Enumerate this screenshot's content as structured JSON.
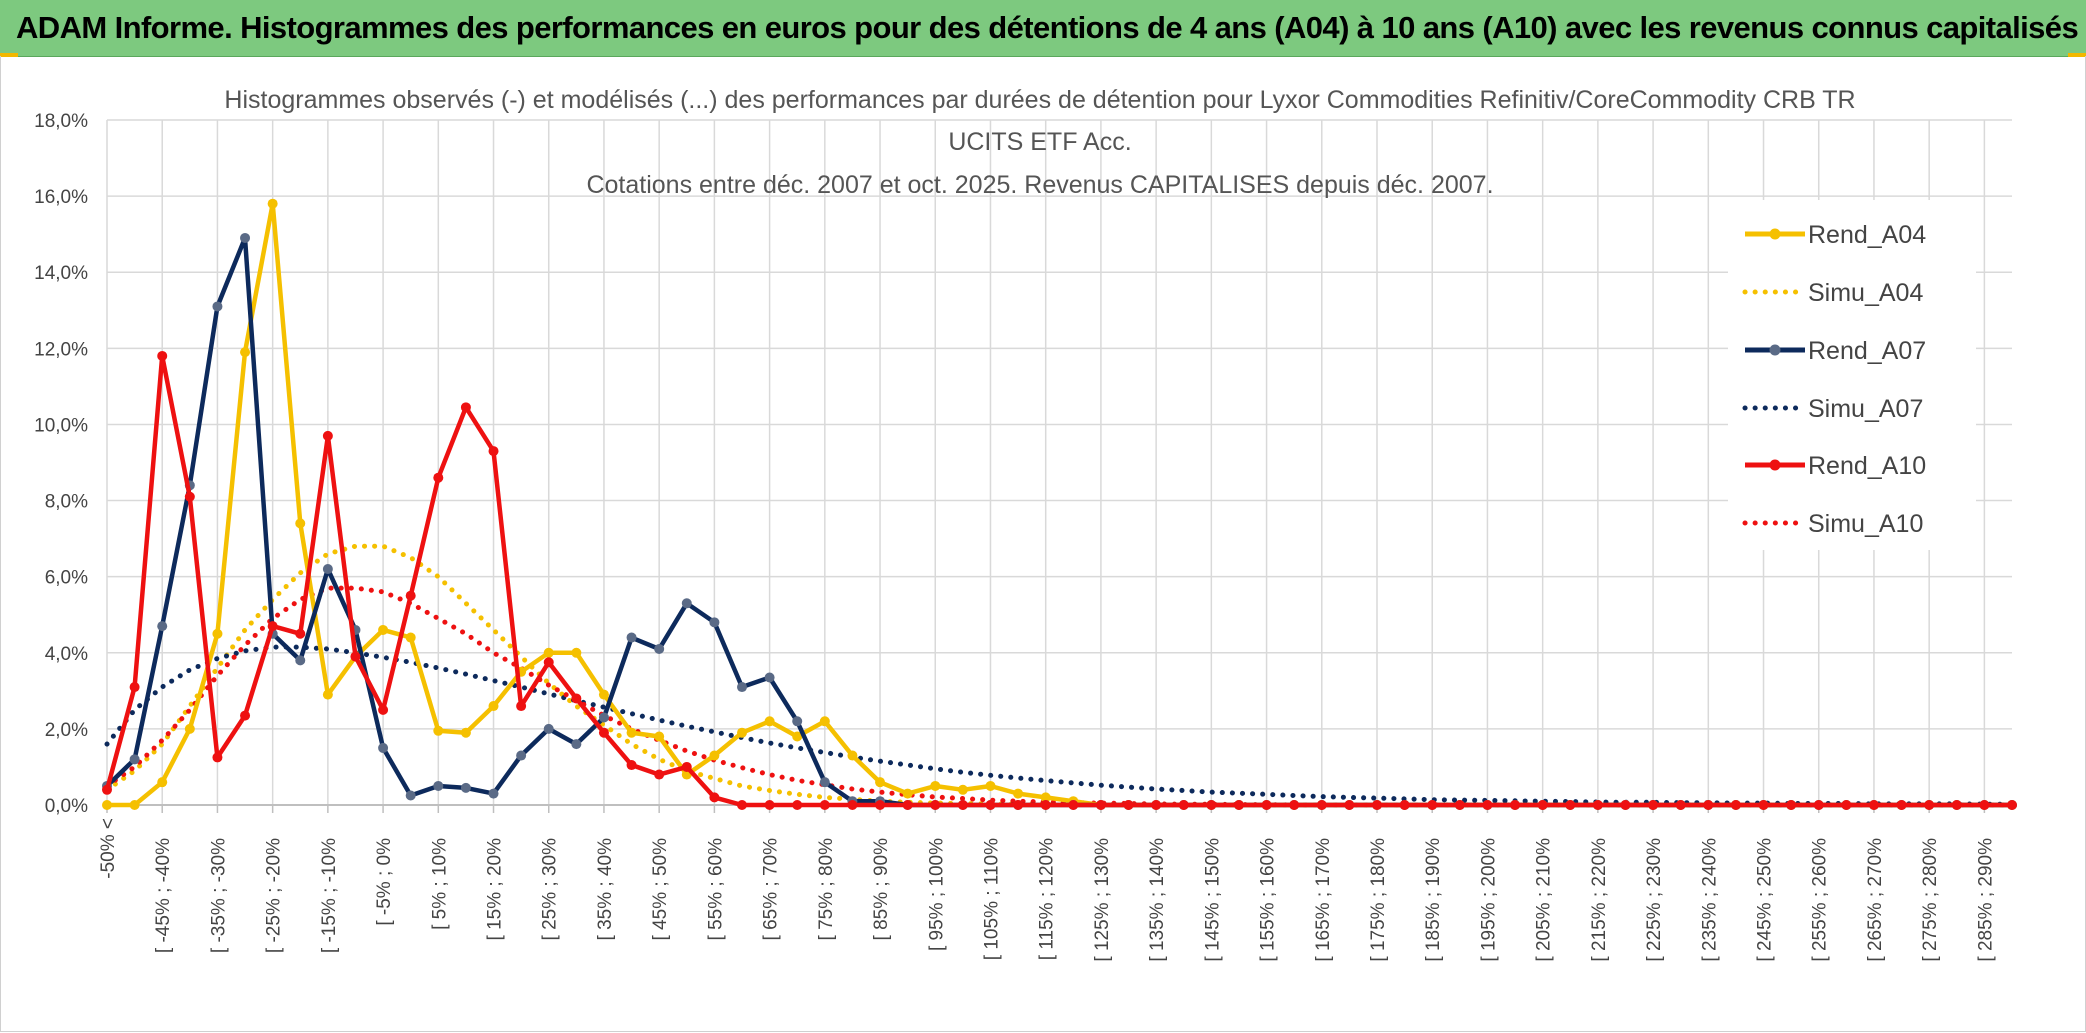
{
  "header": {
    "title": "ADAM Informe. Histogrammes des performances en euros pour des détentions de 4 ans (A04) à 10 ans (A10) avec les revenus connus capitalisés"
  },
  "colors": {
    "banner": "#7dc97f",
    "A04": "#f5c000",
    "A07": "#0d2a5c",
    "A07_marker": "#5a6a86",
    "A10": "#ee1111",
    "grid": "#d9d9d9"
  },
  "chart_data": {
    "type": "line",
    "title_lines": [
      "Histogrammes observés (-) et modélisés (...) des performances par durées de détention pour Lyxor Commodities Refinitiv/CoreCommodity CRB TR",
      "UCITS ETF Acc.",
      "Cotations entre déc. 2007 et oct. 2025. Revenus CAPITALISES depuis déc. 2007."
    ],
    "ylim": [
      0,
      18
    ],
    "yticks": [
      "0,0%",
      "2,0%",
      "4,0%",
      "6,0%",
      "8,0%",
      "10,0%",
      "12,0%",
      "14,0%",
      "16,0%",
      "18,0%"
    ],
    "x_tick_labels": [
      "-50% <",
      "[ -45% ; -40%",
      "[ -35% ; -30%",
      "[ -25% ; -20%",
      "[ -15% ; -10%",
      "[ -5% ; 0%",
      "[ 5% ; 10%",
      "[ 15% ; 20%",
      "[ 25% ; 30%",
      "[ 35% ; 40%",
      "[ 45% ; 50%",
      "[ 55% ; 60%",
      "[ 65% ; 70%",
      "[ 75% ; 80%",
      "[ 85% ; 90%",
      "[ 95% ; 100%",
      "[ 105% ; 110%",
      "[ 115% ; 120%",
      "[ 125% ; 130%",
      "[ 135% ; 140%",
      "[ 145% ; 150%",
      "[ 155% ; 160%",
      "[ 165% ; 170%",
      "[ 175% ; 180%",
      "[ 185% ; 190%",
      "[ 195% ; 200%",
      "[ 205% ; 210%",
      "[ 215% ; 220%",
      "[ 225% ; 230%",
      "[ 235% ; 240%",
      "[ 245% ; 250%",
      "[ 255% ; 260%",
      "[ 265% ; 270%",
      "[ 275% ; 280%",
      "[ 285% ; 290%"
    ],
    "x_tick_step": 2,
    "n_categories": 70,
    "legend_position": "top-right",
    "series": [
      {
        "name": "Rend_A04",
        "style": "solid",
        "color": "#f5c000",
        "values": [
          0,
          0,
          0.6,
          2.0,
          4.5,
          11.9,
          15.8,
          7.4,
          2.9,
          3.9,
          4.6,
          4.4,
          1.95,
          1.9,
          2.6,
          3.5,
          4.0,
          4.0,
          2.9,
          1.9,
          1.8,
          0.8,
          1.3,
          1.9,
          2.2,
          1.8,
          2.2,
          1.3,
          0.6,
          0.3,
          0.5,
          0.4,
          0.5,
          0.3,
          0.2,
          0.1,
          0,
          0,
          0,
          0,
          0,
          0,
          0,
          0,
          0,
          0,
          0,
          0,
          0,
          0,
          0,
          0,
          0,
          0,
          0,
          0,
          0,
          0,
          0,
          0,
          0,
          0,
          0,
          0,
          0,
          0,
          0,
          0,
          0,
          0
        ]
      },
      {
        "name": "Simu_A04",
        "style": "dotted",
        "color": "#f5c000",
        "values": [
          0.4,
          0.9,
          1.6,
          2.6,
          3.6,
          4.6,
          5.4,
          6.1,
          6.6,
          6.8,
          6.8,
          6.5,
          6.0,
          5.3,
          4.6,
          3.9,
          3.2,
          2.6,
          2.1,
          1.6,
          1.2,
          0.9,
          0.7,
          0.5,
          0.38,
          0.28,
          0.2,
          0.15,
          0.1,
          0.07,
          0.05,
          0.04,
          0.03,
          0.02,
          0.01,
          0.01,
          0.01,
          0,
          0,
          0,
          0,
          0,
          0,
          0,
          0,
          0,
          0,
          0,
          0,
          0,
          0,
          0,
          0,
          0,
          0,
          0,
          0,
          0,
          0,
          0,
          0,
          0,
          0,
          0,
          0,
          0,
          0,
          0,
          0,
          0
        ]
      },
      {
        "name": "Rend_A07",
        "style": "solid",
        "color": "#0d2a5c",
        "values": [
          0.5,
          1.2,
          4.7,
          8.4,
          13.1,
          14.9,
          4.5,
          3.8,
          6.2,
          4.6,
          1.5,
          0.25,
          0.5,
          0.45,
          0.3,
          1.3,
          2.0,
          1.6,
          2.3,
          4.4,
          4.1,
          5.3,
          4.8,
          3.1,
          3.35,
          2.2,
          0.6,
          0.1,
          0.1,
          0,
          0,
          0,
          0,
          0,
          0,
          0,
          0,
          0,
          0,
          0,
          0,
          0,
          0,
          0,
          0,
          0,
          0,
          0,
          0,
          0,
          0,
          0,
          0,
          0,
          0,
          0,
          0,
          0,
          0,
          0,
          0,
          0,
          0,
          0,
          0,
          0,
          0,
          0,
          0,
          0
        ]
      },
      {
        "name": "Simu_A07",
        "style": "dotted",
        "color": "#0d2a5c",
        "values": [
          1.6,
          2.5,
          3.1,
          3.55,
          3.85,
          4.05,
          4.15,
          4.15,
          4.1,
          4.0,
          3.88,
          3.75,
          3.6,
          3.44,
          3.27,
          3.1,
          2.92,
          2.74,
          2.57,
          2.4,
          2.23,
          2.07,
          1.92,
          1.77,
          1.63,
          1.5,
          1.38,
          1.26,
          1.15,
          1.05,
          0.95,
          0.86,
          0.78,
          0.71,
          0.64,
          0.58,
          0.52,
          0.47,
          0.42,
          0.38,
          0.34,
          0.31,
          0.28,
          0.25,
          0.22,
          0.2,
          0.18,
          0.16,
          0.14,
          0.13,
          0.12,
          0.11,
          0.1,
          0.09,
          0.08,
          0.07,
          0.07,
          0.06,
          0.06,
          0.05,
          0.05,
          0.04,
          0.04,
          0.04,
          0.03,
          0.03,
          0.03,
          0.03,
          0.02,
          0.02
        ]
      },
      {
        "name": "Rend_A10",
        "style": "solid",
        "color": "#ee1111",
        "values": [
          0.4,
          3.1,
          11.8,
          8.1,
          1.25,
          2.35,
          4.7,
          4.5,
          9.7,
          3.9,
          2.5,
          5.5,
          8.6,
          10.45,
          9.3,
          2.6,
          3.75,
          2.8,
          1.9,
          1.05,
          0.8,
          1.0,
          0.2,
          0,
          0,
          0,
          0,
          0,
          0,
          0,
          0,
          0,
          0,
          0,
          0,
          0,
          0,
          0,
          0,
          0,
          0,
          0,
          0,
          0,
          0,
          0,
          0,
          0,
          0,
          0,
          0,
          0,
          0,
          0,
          0,
          0,
          0,
          0,
          0,
          0,
          0,
          0,
          0,
          0,
          0,
          0,
          0,
          0,
          0,
          0
        ]
      },
      {
        "name": "Simu_A10",
        "style": "dotted",
        "color": "#ee1111",
        "values": [
          0.5,
          1.0,
          1.7,
          2.5,
          3.4,
          4.2,
          4.9,
          5.4,
          5.7,
          5.7,
          5.6,
          5.3,
          4.9,
          4.5,
          4.0,
          3.6,
          3.15,
          2.75,
          2.35,
          2.0,
          1.7,
          1.42,
          1.18,
          0.98,
          0.8,
          0.65,
          0.53,
          0.42,
          0.34,
          0.27,
          0.21,
          0.17,
          0.13,
          0.1,
          0.08,
          0.06,
          0.05,
          0.04,
          0.03,
          0.02,
          0.02,
          0.01,
          0.01,
          0,
          0,
          0,
          0,
          0,
          0,
          0,
          0,
          0,
          0,
          0,
          0,
          0,
          0,
          0,
          0,
          0,
          0,
          0,
          0,
          0,
          0,
          0,
          0,
          0,
          0,
          0
        ]
      }
    ]
  }
}
